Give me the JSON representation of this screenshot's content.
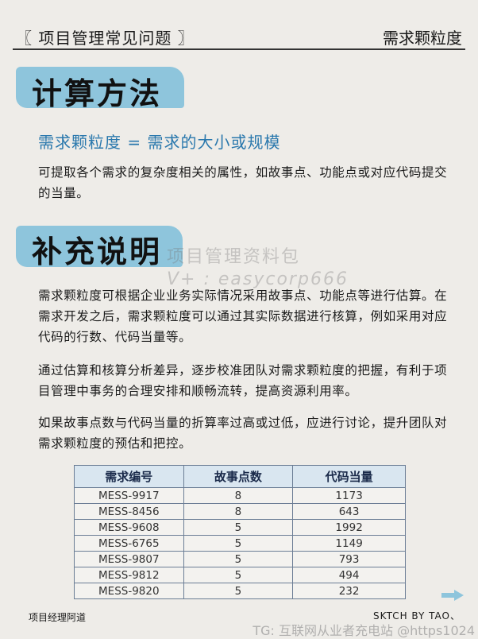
{
  "header": {
    "series": "〖 项目管理常见问题 〗",
    "topic": "需求颗粒度"
  },
  "section1": {
    "title": "计算方法",
    "formula": "需求颗粒度 = 需求的大小或规模",
    "body": "可提取各个需求的复杂度相关的属性，如故事点、功能点或对应代码提交的当量。"
  },
  "section2": {
    "title": "补充说明",
    "paragraphs": [
      "需求颗粒度可根据企业业务实际情况采用故事点、功能点等进行估算。在需求开发之后，需求颗粒度可以通过其实际数据进行核算，例如采用对应代码的行数、代码当量等。",
      "通过估算和核算分析差异，逐步校准团队对需求颗粒度的把握，有利于项目管理中事务的合理安排和顺畅流转，提高资源利用率。",
      "如果故事点数与代码当量的折算率过高或过低，应进行讨论，提升团队对需求颗粒度的预估和把控。"
    ]
  },
  "watermark": {
    "line1": "项目管理资料包",
    "line2": "V+ : easycorp666"
  },
  "table": {
    "headers": [
      "需求编号",
      "故事点数",
      "代码当量"
    ],
    "rows": [
      [
        "MESS-9917",
        "8",
        "1173"
      ],
      [
        "MESS-8456",
        "8",
        "643"
      ],
      [
        "MESS-9608",
        "5",
        "1992"
      ],
      [
        "MESS-6765",
        "5",
        "1149"
      ],
      [
        "MESS-9807",
        "5",
        "793"
      ],
      [
        "MESS-9812",
        "5",
        "494"
      ],
      [
        "MESS-9820",
        "5",
        "232"
      ]
    ]
  },
  "footer": {
    "author": "项目经理阿道",
    "credit": "SKTCH BY TAO、",
    "tg": "TG: 互联网从业者充电站 @https1024"
  },
  "colors": {
    "accent": "#8ec5dc",
    "formula": "#2a78ad",
    "background": "#eeece8"
  },
  "icons": {
    "next": "arrow-right-icon"
  }
}
